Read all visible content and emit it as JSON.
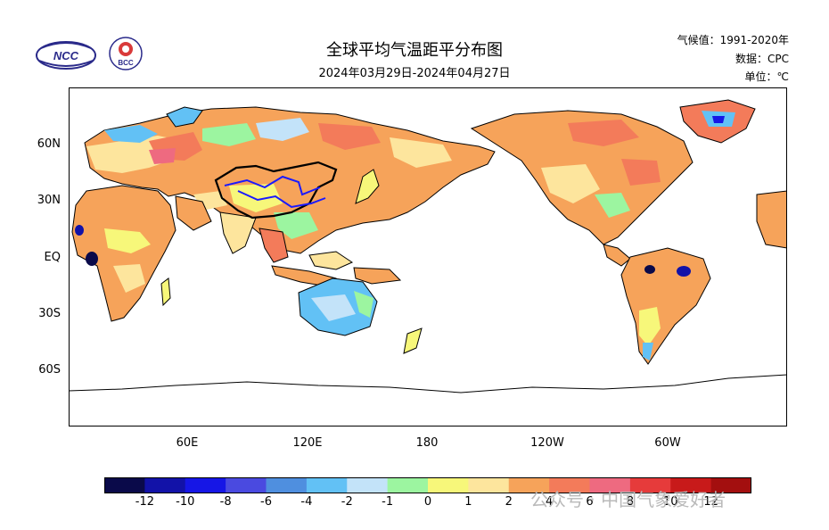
{
  "header": {
    "title": "全球平均气温距平分布图",
    "date_range": "2024年03月29日-2024年04月27日",
    "climate_period": "气候值：1991-2020年",
    "data_source": "数据：CPC",
    "unit": "单位：℃"
  },
  "logos": [
    {
      "icon": "ncc-logo",
      "text": "NCC"
    },
    {
      "icon": "bcc-logo",
      "text": "BCC"
    }
  ],
  "map": {
    "lat_labels": [
      "60N",
      "30N",
      "EQ",
      "30S",
      "60S"
    ],
    "lon_labels": [
      "60E",
      "120E",
      "180",
      "120W",
      "60W"
    ]
  },
  "colorbar": {
    "labels": [
      "-12",
      "-10",
      "-8",
      "-6",
      "-4",
      "-2",
      "-1",
      "0",
      "1",
      "2",
      "4",
      "6",
      "8",
      "10",
      "12"
    ],
    "colors": [
      "#0a0a4a",
      "#1212a8",
      "#1616e6",
      "#4a4ae0",
      "#4f8fdf",
      "#62c1f5",
      "#c3e3f9",
      "#9cf5a0",
      "#f7f77a",
      "#fde59d",
      "#f6a35a",
      "#f37b5a",
      "#ee6a80",
      "#e63b3b",
      "#c81a1a",
      "#a30f0f"
    ]
  },
  "watermark": "公众号 · 中国气象爱好者",
  "palette": {
    "ocean": "#ffffff",
    "coast": "#000000",
    "china_border": "#000000",
    "rivers": "#1a1aff"
  }
}
